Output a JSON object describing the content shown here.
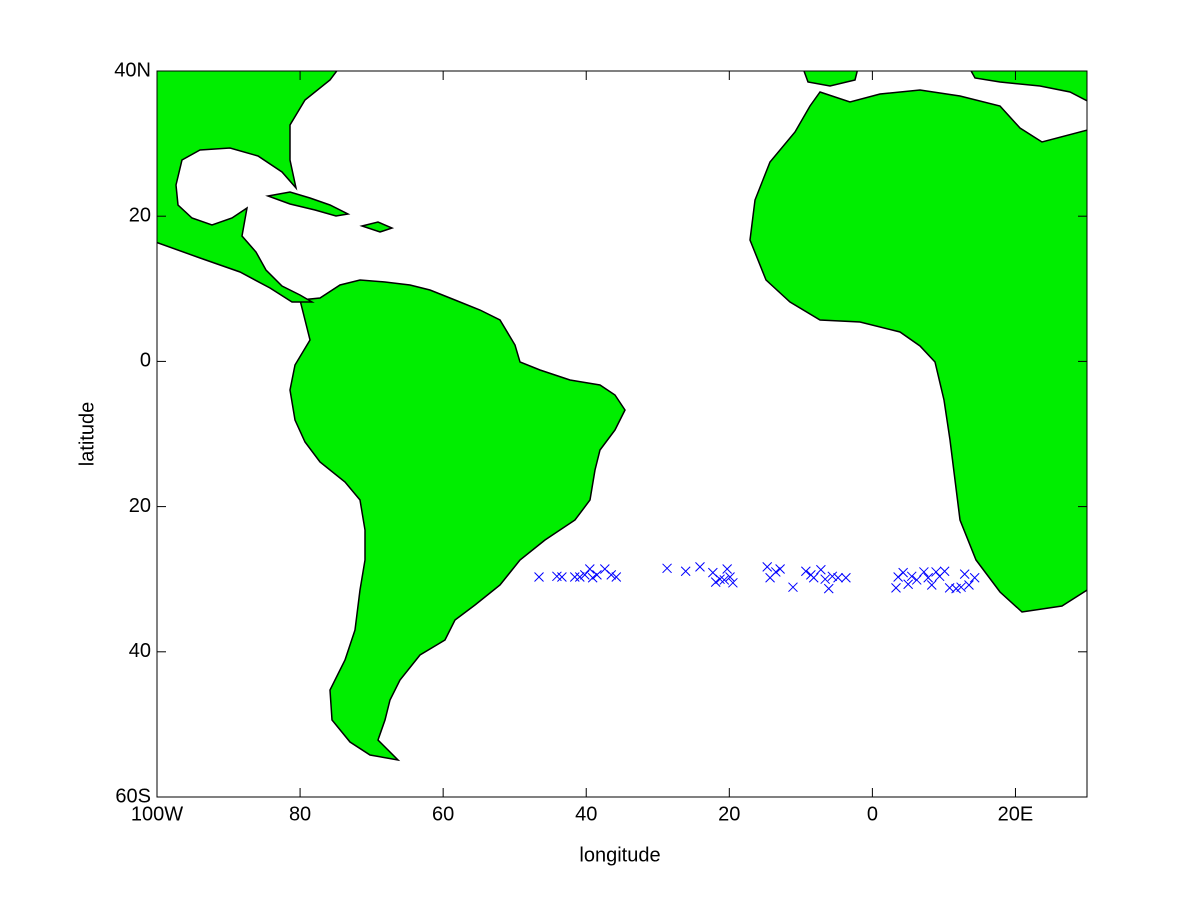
{
  "chart_data": {
    "type": "scatter",
    "xlabel": "longitude",
    "ylabel": "latitude",
    "xlim": [
      -100,
      30
    ],
    "ylim": [
      -60,
      40
    ],
    "xticks": [
      {
        "value": -100,
        "label": "100W"
      },
      {
        "value": -80,
        "label": "80"
      },
      {
        "value": -60,
        "label": "60"
      },
      {
        "value": -40,
        "label": "40"
      },
      {
        "value": -20,
        "label": "20"
      },
      0,
      {
        "value": 20,
        "label": "20E"
      }
    ],
    "yticks": [
      {
        "value": 40,
        "label": "40N"
      },
      {
        "value": 20,
        "label": "20"
      },
      0,
      {
        "value": -20,
        "label": "20"
      },
      {
        "value": -40,
        "label": "40"
      },
      {
        "value": -60,
        "label": "60S"
      }
    ],
    "color": "#0000ff",
    "x": [
      -46.6,
      -44.1,
      -43.4,
      -41.6,
      -40.9,
      -40.2,
      -39.5,
      -39.1,
      -38.5,
      -37.4,
      -36.5,
      -35.8,
      -28.7,
      -26.1,
      -24.1,
      -22.3,
      -21.9,
      -21.3,
      -20.7,
      -20.3,
      -19.9,
      -19.5,
      -14.7,
      -14.3,
      -13.5,
      -12.9,
      -11.1,
      -9.3,
      -8.6,
      -8.2,
      -7.2,
      -6.6,
      -6.1,
      -5.6,
      -4.8,
      -3.7,
      3.3,
      3.6,
      4.3,
      5.0,
      5.5,
      6.2,
      7.2,
      7.8,
      8.3,
      8.9,
      9.4,
      10.1,
      10.8,
      11.7,
      12.4,
      12.9,
      13.5,
      14.3
    ],
    "values": [
      -29.7,
      -29.6,
      -29.7,
      -29.7,
      -29.7,
      -29.4,
      -28.6,
      -29.8,
      -29.4,
      -28.6,
      -29.4,
      -29.7,
      -28.5,
      -28.9,
      -28.3,
      -29.1,
      -30.4,
      -30.0,
      -30.1,
      -28.6,
      -29.7,
      -30.5,
      -28.3,
      -29.8,
      -29.0,
      -28.6,
      -31.1,
      -28.9,
      -29.4,
      -29.8,
      -28.7,
      -30.0,
      -31.3,
      -29.6,
      -29.8,
      -29.8,
      -31.2,
      -29.7,
      -29.1,
      -30.7,
      -29.6,
      -30.1,
      -29.0,
      -29.8,
      -30.8,
      -29.0,
      -29.6,
      -28.9,
      -31.2,
      -31.3,
      -31.1,
      -29.3,
      -30.8,
      -29.8
    ]
  }
}
